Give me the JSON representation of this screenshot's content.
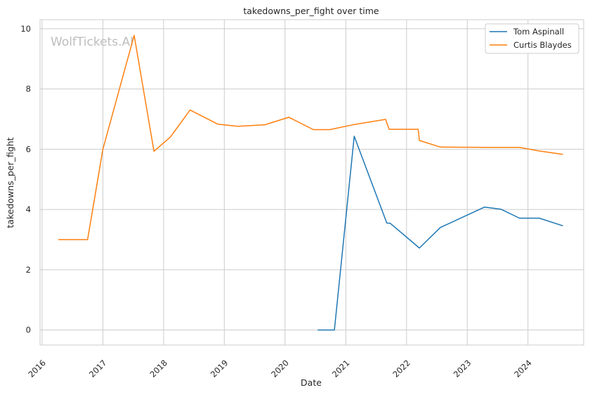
{
  "chart_data": {
    "type": "line",
    "title": "takedowns_per_fight over time",
    "xlabel": "Date",
    "ylabel": "takedowns_per_fight",
    "watermark": "WolfTickets.AI",
    "xlim": [
      "2015-12-20",
      "2024-12-01"
    ],
    "ylim": [
      -0.5,
      10.3
    ],
    "yticks": [
      0,
      2,
      4,
      6,
      8,
      10
    ],
    "xticks": [
      "2016",
      "2017",
      "2018",
      "2019",
      "2020",
      "2021",
      "2022",
      "2023",
      "2024"
    ],
    "grid": true,
    "legend_position": "top-right",
    "series": [
      {
        "name": "Tom Aspinall",
        "color": "#1f77b4",
        "points": [
          [
            "2020-07-18",
            0
          ],
          [
            "2020-10-24",
            0
          ],
          [
            "2021-02-20",
            6.43
          ],
          [
            "2021-09-04",
            3.55
          ],
          [
            "2021-09-25",
            3.54
          ],
          [
            "2022-03-19",
            2.72
          ],
          [
            "2022-07-23",
            3.4
          ],
          [
            "2023-04-15",
            4.08
          ],
          [
            "2023-07-22",
            4.01
          ],
          [
            "2023-11-11",
            3.71
          ],
          [
            "2024-03-09",
            3.71
          ],
          [
            "2024-07-27",
            3.46
          ]
        ]
      },
      {
        "name": "Curtis Blaydes",
        "color": "#ff7f0e",
        "points": [
          [
            "2016-04-10",
            3.0
          ],
          [
            "2016-10-01",
            3.0
          ],
          [
            "2017-01-01",
            6.0
          ],
          [
            "2017-07-08",
            9.78
          ],
          [
            "2017-11-04",
            5.93
          ],
          [
            "2018-02-10",
            6.4
          ],
          [
            "2018-06-09",
            7.3
          ],
          [
            "2018-11-24",
            6.83
          ],
          [
            "2019-03-23",
            6.76
          ],
          [
            "2019-09-01",
            6.81
          ],
          [
            "2020-01-25",
            7.06
          ],
          [
            "2020-06-20",
            6.65
          ],
          [
            "2020-09-26",
            6.65
          ],
          [
            "2021-02-20",
            6.82
          ],
          [
            "2021-08-28",
            6.99
          ],
          [
            "2021-09-18",
            6.66
          ],
          [
            "2022-03-12",
            6.66
          ],
          [
            "2022-03-19",
            6.29
          ],
          [
            "2022-07-23",
            6.07
          ],
          [
            "2023-04-22",
            6.06
          ],
          [
            "2023-11-11",
            6.06
          ],
          [
            "2024-03-09",
            5.94
          ],
          [
            "2024-07-27",
            5.83
          ]
        ]
      }
    ]
  }
}
